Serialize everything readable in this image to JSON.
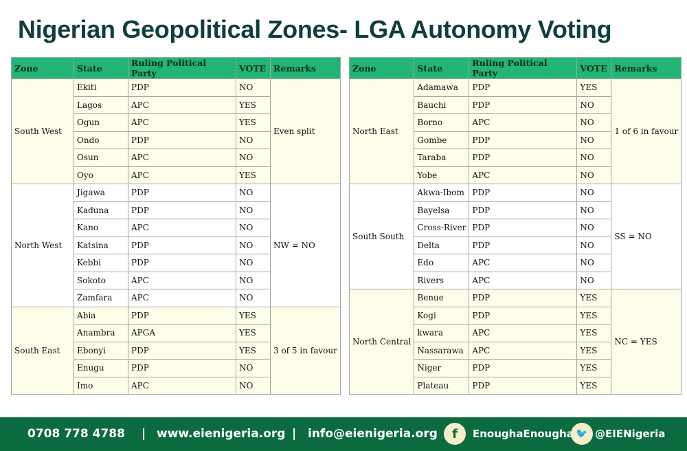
{
  "title": "Nigerian Geopolitical Zones- LGA Autonomy Voting",
  "table_headers": [
    "Zone",
    "State",
    "Ruling Political Party",
    "VOTE",
    "Remarks"
  ],
  "left_table": [
    {
      "zone": "South West",
      "remark": "Even split",
      "states": [
        {
          "state": "Ekiti",
          "party": "PDP",
          "vote": "NO"
        },
        {
          "state": "Lagos",
          "party": "APC",
          "vote": "YES"
        },
        {
          "state": "Ogun",
          "party": "APC",
          "vote": "YES"
        },
        {
          "state": "Ondo",
          "party": "PDP",
          "vote": "NO"
        },
        {
          "state": "Osun",
          "party": "APC",
          "vote": "NO"
        },
        {
          "state": "Oyo",
          "party": "APC",
          "vote": "YES"
        }
      ]
    },
    {
      "zone": "North West",
      "remark": "NW = NO",
      "states": [
        {
          "state": "Jigawa",
          "party": "PDP",
          "vote": "NO"
        },
        {
          "state": "Kaduna",
          "party": "PDP",
          "vote": "NO"
        },
        {
          "state": "Kano",
          "party": "APC",
          "vote": "NO"
        },
        {
          "state": "Katsina",
          "party": "PDP",
          "vote": "NO"
        },
        {
          "state": "Kebbi",
          "party": "PDP",
          "vote": "NO"
        },
        {
          "state": "Sokoto",
          "party": "APC",
          "vote": "NO"
        },
        {
          "state": "Zamfara",
          "party": "APC",
          "vote": "NO"
        }
      ]
    },
    {
      "zone": "South East",
      "remark": "3 of 5 in favour",
      "states": [
        {
          "state": "Abia",
          "party": "PDP",
          "vote": "YES"
        },
        {
          "state": "Anambra",
          "party": "APGA",
          "vote": "YES"
        },
        {
          "state": "Ebonyi",
          "party": "PDP",
          "vote": "YES"
        },
        {
          "state": "Enugu",
          "party": "PDP",
          "vote": "NO"
        },
        {
          "state": "Imo",
          "party": "APC",
          "vote": "NO"
        }
      ]
    }
  ],
  "right_table": [
    {
      "zone": "North East",
      "remark": "1 of 6 in favour",
      "states": [
        {
          "state": "Adamawa",
          "party": "PDP",
          "vote": "YES"
        },
        {
          "state": "Bauchi",
          "party": "PDP",
          "vote": "NO"
        },
        {
          "state": "Borno",
          "party": "APC",
          "vote": "NO"
        },
        {
          "state": "Gombe",
          "party": "PDP",
          "vote": "NO"
        },
        {
          "state": "Taraba",
          "party": "PDP",
          "vote": "NO"
        },
        {
          "state": "Yobe",
          "party": "APC",
          "vote": "NO"
        }
      ]
    },
    {
      "zone": "South South",
      "remark": "SS = NO",
      "states": [
        {
          "state": "Akwa-Ibom",
          "party": "PDP",
          "vote": "NO"
        },
        {
          "state": "Bayelsa",
          "party": "PDP",
          "vote": "NO"
        },
        {
          "state": "Cross-River",
          "party": "PDP",
          "vote": "NO"
        },
        {
          "state": "Delta",
          "party": "PDP",
          "vote": "NO"
        },
        {
          "state": "Edo",
          "party": "APC",
          "vote": "NO"
        },
        {
          "state": "Rivers",
          "party": "APC",
          "vote": "NO"
        }
      ]
    },
    {
      "zone": "North Central",
      "remark": "NC = YES",
      "states": [
        {
          "state": "Benue",
          "party": "PDP",
          "vote": "YES"
        },
        {
          "state": "Kogi",
          "party": "PDP",
          "vote": "YES"
        },
        {
          "state": "kwara",
          "party": "APC",
          "vote": "YES"
        },
        {
          "state": "Nassarawa",
          "party": "APC",
          "vote": "YES"
        },
        {
          "state": "Niger",
          "party": "PDP",
          "vote": "YES"
        },
        {
          "state": "Plateau",
          "party": "PDP",
          "vote": "YES"
        }
      ]
    }
  ],
  "footer": {
    "phone": "0708 778 4788",
    "separator": "|",
    "website": "www.eienigeria.org",
    "email": "info@eienigeria.org",
    "facebook_glyph": "f",
    "facebook": "EnoughaEnougha",
    "twitter_glyph": "🐦",
    "twitter": "@EIENigeria",
    "facebook_icon": "facebook-icon",
    "twitter_icon": "twitter-icon"
  },
  "colors": {
    "title": "#0f3f3b",
    "header_bg": "#22b573",
    "shaded_row": "#fdfdea",
    "footer_bg": "#0b6b3e",
    "icon_circle": "#f4efc8"
  }
}
